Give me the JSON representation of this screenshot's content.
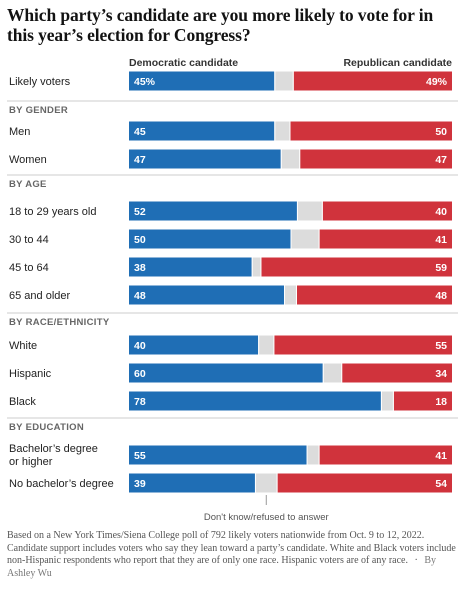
{
  "title": "Which party’s candidate are you more likely to vote for in this year’s election for Congress?",
  "legend": {
    "democratic": "Democratic candidate",
    "republican": "Republican candidate",
    "undecided": "Don't know/refused to answer"
  },
  "colors": {
    "democratic": "#1f6eb5",
    "republican": "#d0333c",
    "undecided": "#dcdcdc"
  },
  "footnote": {
    "text": "Based on a New York Times/Siena College poll of 792 likely voters nationwide from Oct. 9 to 12, 2022. Candidate support includes voters who say they lean toward a party’s candidate. White and Black voters include non-Hispanic respondents who report that they are of only one race. Hispanic voters are of any race.",
    "separator": "·",
    "byline": "By Ashley Wu"
  },
  "chart_data": {
    "type": "bar",
    "stacked": true,
    "orientation": "horizontal",
    "series": [
      {
        "name": "Democratic candidate",
        "key": "dem"
      },
      {
        "name": "Don't know/refused to answer",
        "key": "und"
      },
      {
        "name": "Republican candidate",
        "key": "rep"
      }
    ],
    "groups": [
      {
        "header": "",
        "rows": [
          {
            "label": "Likely voters",
            "dem": 45,
            "rep": 49,
            "dem_text": "45%",
            "rep_text": "49%"
          }
        ]
      },
      {
        "header": "BY GENDER",
        "rows": [
          {
            "label": "Men",
            "dem": 45,
            "rep": 50,
            "dem_text": "45",
            "rep_text": "50"
          },
          {
            "label": "Women",
            "dem": 47,
            "rep": 47,
            "dem_text": "47",
            "rep_text": "47"
          }
        ]
      },
      {
        "header": "BY AGE",
        "rows": [
          {
            "label": "18 to 29 years old",
            "dem": 52,
            "rep": 40,
            "dem_text": "52",
            "rep_text": "40"
          },
          {
            "label": "30 to 44",
            "dem": 50,
            "rep": 41,
            "dem_text": "50",
            "rep_text": "41"
          },
          {
            "label": "45 to 64",
            "dem": 38,
            "rep": 59,
            "dem_text": "38",
            "rep_text": "59"
          },
          {
            "label": "65 and older",
            "dem": 48,
            "rep": 48,
            "dem_text": "48",
            "rep_text": "48"
          }
        ]
      },
      {
        "header": "BY RACE/ETHNICITY",
        "rows": [
          {
            "label": "White",
            "dem": 40,
            "rep": 55,
            "dem_text": "40",
            "rep_text": "55"
          },
          {
            "label": "Hispanic",
            "dem": 60,
            "rep": 34,
            "dem_text": "60",
            "rep_text": "34"
          },
          {
            "label": "Black",
            "dem": 78,
            "rep": 18,
            "dem_text": "78",
            "rep_text": "18"
          }
        ]
      },
      {
        "header": "BY EDUCATION",
        "rows": [
          {
            "label": "Bachelor’s degree\nor higher",
            "dem": 55,
            "rep": 41,
            "dem_text": "55",
            "rep_text": "41"
          },
          {
            "label": "No bachelor’s degree",
            "dem": 39,
            "rep": 54,
            "dem_text": "39",
            "rep_text": "54"
          }
        ]
      }
    ]
  }
}
